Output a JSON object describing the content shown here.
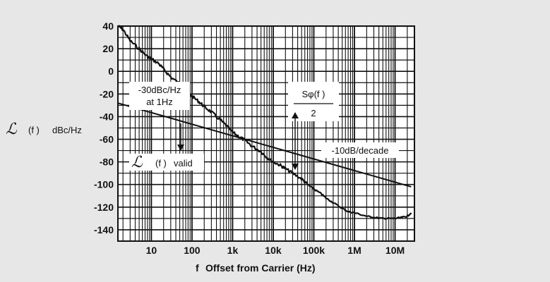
{
  "chart_data": {
    "type": "line",
    "xscale": "log",
    "xlim": [
      1.5,
      30000000
    ],
    "ylim": [
      -150,
      40
    ],
    "grid": true,
    "xlabel": "Offset from Carrier (Hz)",
    "xlabel_symbol": "f",
    "ylabel": "dBc/Hz",
    "ylabel_symbol": "ℒ",
    "ylabel_arg": "(f  )",
    "x_ticks": [
      {
        "value": 10,
        "label": "10"
      },
      {
        "value": 100,
        "label": "100"
      },
      {
        "value": 1000,
        "label": "1k"
      },
      {
        "value": 10000,
        "label": "10k"
      },
      {
        "value": 100000,
        "label": "100k"
      },
      {
        "value": 1000000,
        "label": "1M"
      },
      {
        "value": 10000000,
        "label": "10M"
      }
    ],
    "y_ticks": [
      {
        "value": 40,
        "label": "40"
      },
      {
        "value": 20,
        "label": "20"
      },
      {
        "value": 0,
        "label": "0"
      },
      {
        "value": -20,
        "label": "-20"
      },
      {
        "value": -40,
        "label": "-40"
      },
      {
        "value": -60,
        "label": "-60"
      },
      {
        "value": -80,
        "label": "-80"
      },
      {
        "value": -100,
        "label": "-100"
      },
      {
        "value": -120,
        "label": "-120"
      },
      {
        "value": -140,
        "label": "-140"
      }
    ],
    "series": [
      {
        "kind": "measured-phase-noise",
        "x": [
          1.5,
          2,
          3,
          5,
          8,
          10,
          15,
          20,
          30,
          50,
          70,
          100,
          150,
          200,
          300,
          500,
          700,
          1000,
          1500,
          2000,
          3000,
          5000,
          7000,
          10000,
          15000,
          20000,
          30000,
          50000,
          70000,
          100000,
          150000,
          200000,
          300000,
          500000,
          700000,
          1000000,
          2000000,
          3000000,
          5000000,
          7000000,
          10000000,
          15000000,
          20000000,
          25000000
        ],
        "y": [
          40,
          37,
          27,
          20,
          13,
          11,
          7,
          2,
          -5,
          -11,
          -17,
          -22,
          -27,
          -31,
          -36,
          -43,
          -48,
          -54,
          -58,
          -61,
          -66,
          -71,
          -76,
          -80,
          -83,
          -86,
          -90,
          -95,
          -100,
          -104,
          -108,
          -112,
          -116,
          -121,
          -124,
          -125,
          -128,
          -129,
          -130,
          -130,
          -130,
          -129,
          -128,
          -125
        ]
      },
      {
        "kind": "reference-line",
        "x": [
          1.5,
          25000000
        ],
        "y": [
          -28,
          -102
        ]
      }
    ],
    "annotations": {
      "slope_ref": "-30dBc/Hz",
      "slope_ref2": "at 1Hz",
      "validity": "valid",
      "validity_symbol": "ℒ",
      "validity_arg": "(f  )",
      "phase_num": "Sφ(f  )",
      "phase_den": "2",
      "decade": "-10dB/decade"
    }
  }
}
